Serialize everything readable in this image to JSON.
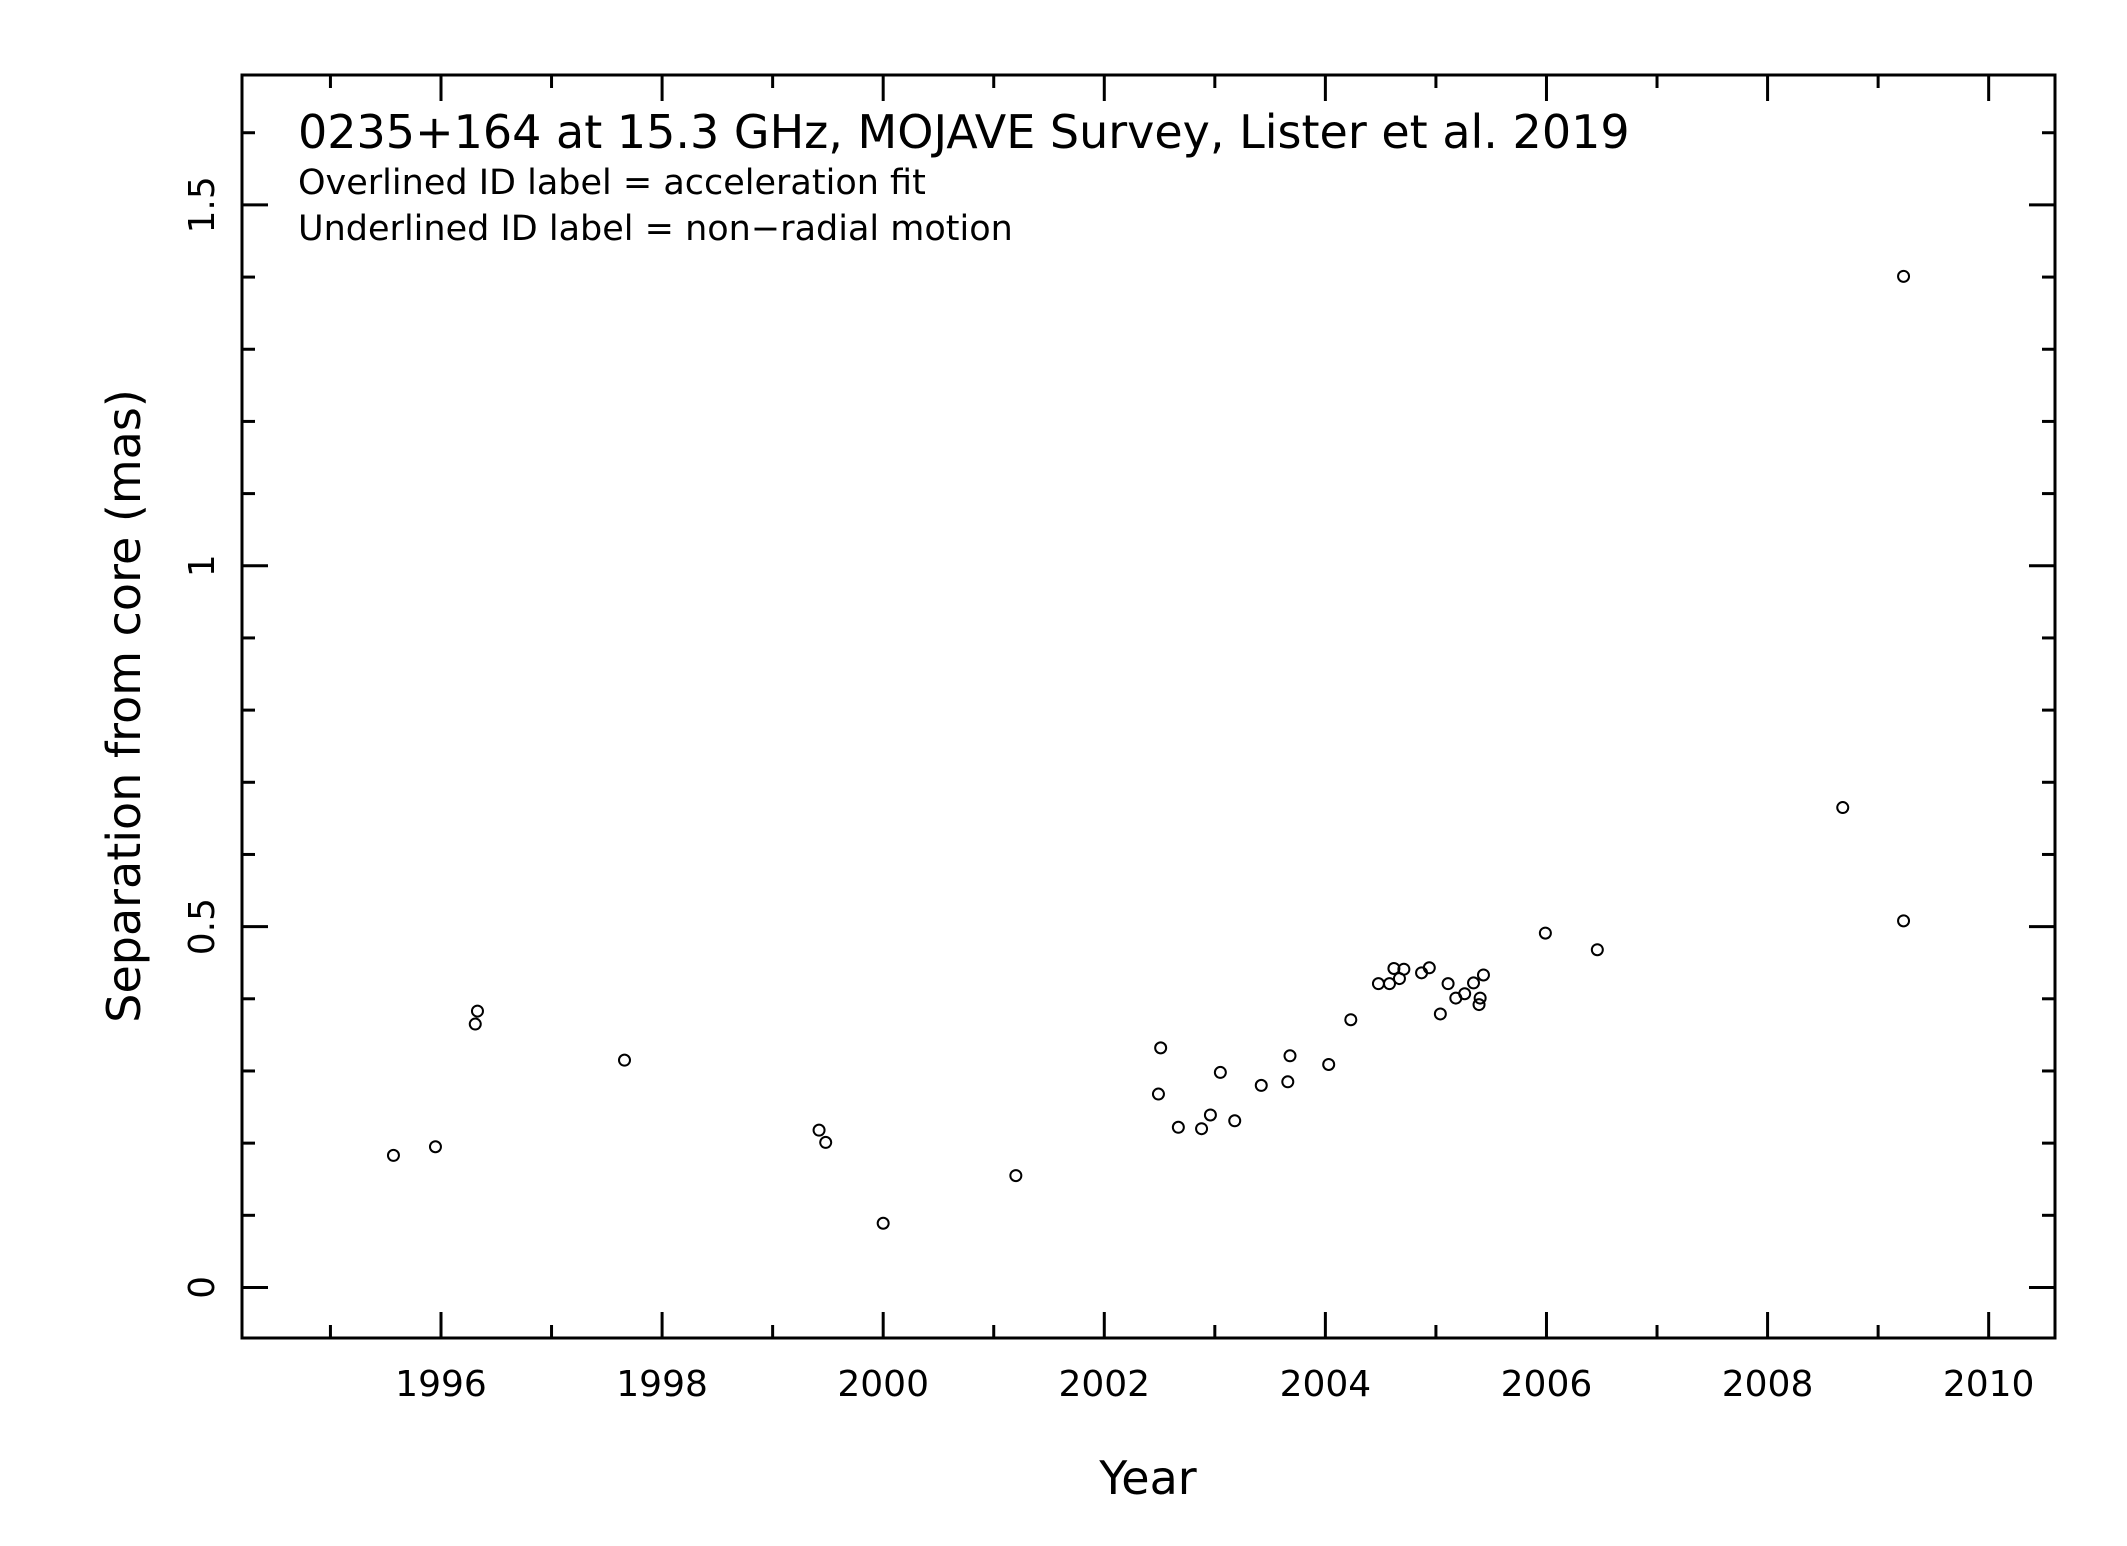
{
  "chart_data": {
    "type": "scatter",
    "title": "0235+164 at 15.3 GHz, MOJAVE Survey, Lister et al. 2019",
    "notes": [
      "Overlined ID label = acceleration fit",
      "Underlined ID label = non−radial motion"
    ],
    "xlabel": "Year",
    "ylabel": "Separation from core (mas)",
    "xlim": [
      1994.2,
      2010.6
    ],
    "ylim": [
      -0.07,
      1.68
    ],
    "xticks": [
      1996,
      1998,
      2000,
      2002,
      2004,
      2006,
      2008,
      2010
    ],
    "xtick_labels": [
      "1996",
      "1998",
      "2000",
      "2002",
      "2004",
      "2006",
      "2008",
      "2010"
    ],
    "yticks": [
      0,
      0.5,
      1,
      1.5
    ],
    "ytick_labels": [
      "0",
      "0.5",
      "1",
      "1.5"
    ],
    "grid": false,
    "marker": "open-circle",
    "points": [
      [
        1995.57,
        0.183
      ],
      [
        1995.95,
        0.195
      ],
      [
        1996.31,
        0.365
      ],
      [
        1996.33,
        0.383
      ],
      [
        1997.66,
        0.315
      ],
      [
        1999.42,
        0.218
      ],
      [
        1999.48,
        0.201
      ],
      [
        2000.0,
        0.089
      ],
      [
        2001.2,
        0.155
      ],
      [
        2002.49,
        0.268
      ],
      [
        2002.51,
        0.332
      ],
      [
        2002.67,
        0.222
      ],
      [
        2002.88,
        0.22
      ],
      [
        2002.96,
        0.239
      ],
      [
        2003.05,
        0.298
      ],
      [
        2003.18,
        0.231
      ],
      [
        2003.42,
        0.28
      ],
      [
        2003.66,
        0.285
      ],
      [
        2003.68,
        0.321
      ],
      [
        2004.03,
        0.309
      ],
      [
        2004.23,
        0.371
      ],
      [
        2004.48,
        0.421
      ],
      [
        2004.58,
        0.421
      ],
      [
        2004.62,
        0.442
      ],
      [
        2004.67,
        0.428
      ],
      [
        2004.71,
        0.441
      ],
      [
        2004.87,
        0.436
      ],
      [
        2004.94,
        0.443
      ],
      [
        2005.04,
        0.379
      ],
      [
        2005.11,
        0.421
      ],
      [
        2005.18,
        0.401
      ],
      [
        2005.26,
        0.407
      ],
      [
        2005.34,
        0.422
      ],
      [
        2005.39,
        0.392
      ],
      [
        2005.4,
        0.401
      ],
      [
        2005.43,
        0.433
      ],
      [
        2005.99,
        0.491
      ],
      [
        2006.46,
        0.468
      ],
      [
        2008.68,
        0.665
      ],
      [
        2009.23,
        0.508
      ],
      [
        2009.23,
        1.401
      ]
    ]
  }
}
